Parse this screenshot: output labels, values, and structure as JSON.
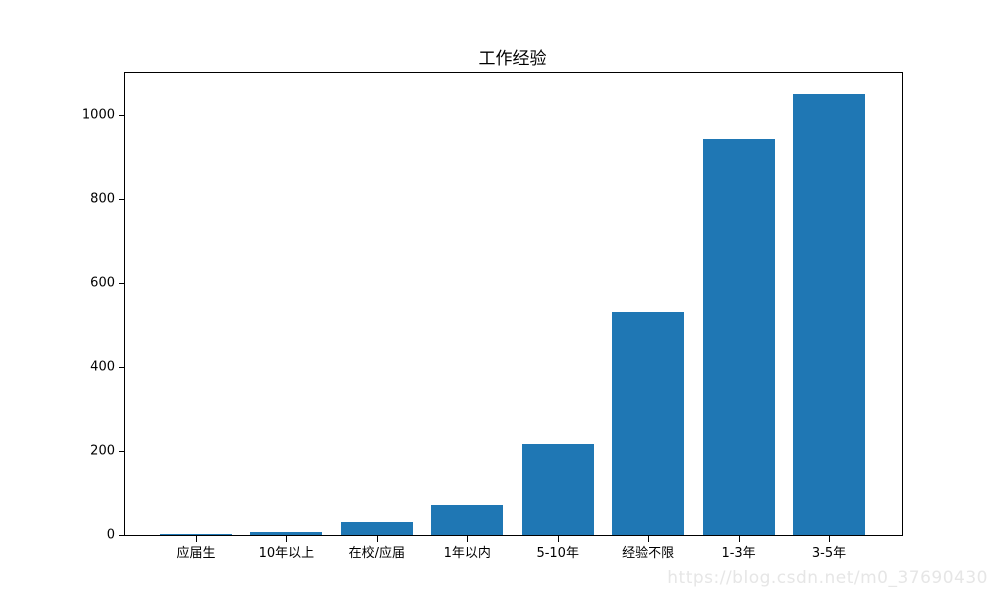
{
  "title": "工作经验",
  "watermark_text": "https://blog.csdn.net/m0_37690430",
  "colors": {
    "bar": "#1f77b4",
    "axis": "#000000",
    "watermark": "#e6e6e6",
    "background": "#ffffff"
  },
  "chart_data": {
    "type": "bar",
    "title": "工作经验",
    "categories": [
      "应届生",
      "10年以上",
      "在校/应届",
      "1年以内",
      "5-10年",
      "经验不限",
      "1-3年",
      "3-5年"
    ],
    "values": [
      2,
      8,
      31,
      72,
      216,
      530,
      942,
      1049
    ],
    "xlabel": "",
    "ylabel": "",
    "ylim": [
      0,
      1100
    ],
    "y_ticks": [
      0,
      200,
      400,
      600,
      800,
      1000
    ],
    "grid": false,
    "legend": "none",
    "bar_color": "#1f77b4"
  }
}
